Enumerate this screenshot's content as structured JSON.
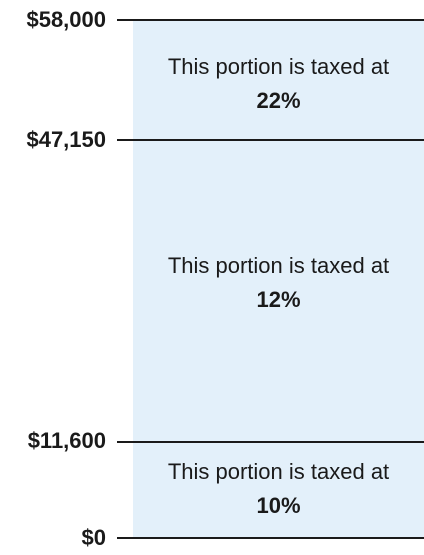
{
  "brackets": [
    {
      "amount": "$0"
    },
    {
      "amount": "$11,600"
    },
    {
      "amount": "$47,150"
    },
    {
      "amount": "$58,000"
    }
  ],
  "bands": [
    {
      "text": "This portion is taxed at",
      "rate": "10%"
    },
    {
      "text": "This portion is taxed at",
      "rate": "12%"
    },
    {
      "text": "This portion is taxed at",
      "rate": "22%"
    }
  ],
  "colors": {
    "band_fill": "#e3f0fa",
    "line": "#1a1a1a"
  }
}
